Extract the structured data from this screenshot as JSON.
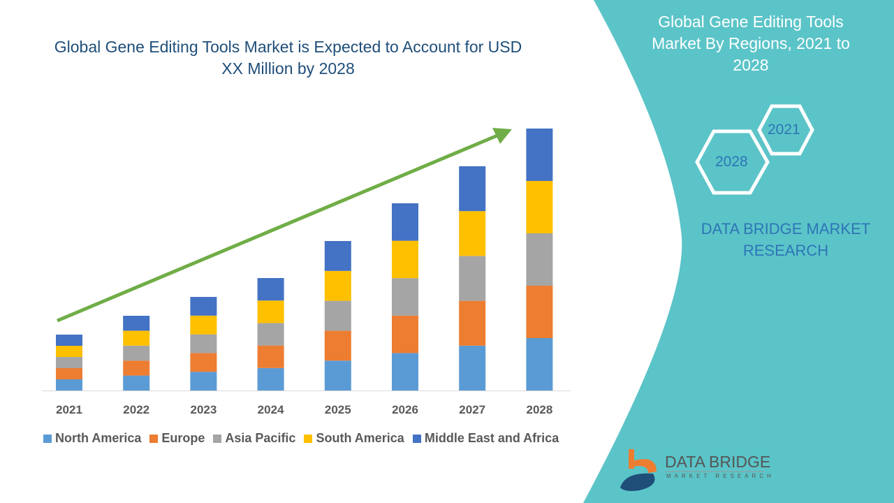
{
  "title": "Global Gene Editing Tools Market is Expected to Account for USD XX Million by 2028",
  "side_panel": {
    "title": "Global Gene Editing Tools Market By Regions, 2021 to 2028",
    "hex_labels": [
      "2021",
      "2028"
    ],
    "brand": "DATA BRIDGE MARKET RESEARCH",
    "logo_text": "DATA BRIDGE",
    "logo_subtext": "MARKET RESEARCH",
    "panel_color": "#5bc4c8"
  },
  "chart_data": {
    "type": "bar",
    "stacked": true,
    "title": "Global Gene Editing Tools Market is Expected to Account for USD XX Million by 2028",
    "categories": [
      "2021",
      "2022",
      "2023",
      "2024",
      "2025",
      "2026",
      "2027",
      "2028"
    ],
    "y_axis_shown": false,
    "ylim": [
      0,
      390
    ],
    "grid": false,
    "legend_position": "bottom",
    "trend_arrow": true,
    "series": [
      {
        "name": "North America",
        "color": "#5b9bd5",
        "values": [
          16,
          21.4,
          26.8,
          32.2,
          42.8,
          53.6,
          64.2,
          75
        ]
      },
      {
        "name": "Europe",
        "color": "#ed7d31",
        "values": [
          16,
          21.4,
          26.8,
          32.2,
          42.8,
          53.6,
          64.2,
          75
        ]
      },
      {
        "name": "Asia Pacific",
        "color": "#a5a5a5",
        "values": [
          16,
          21.4,
          26.8,
          32.2,
          42.8,
          53.6,
          64.2,
          75
        ]
      },
      {
        "name": "South America",
        "color": "#ffc000",
        "values": [
          16,
          21.4,
          26.8,
          32.2,
          42.8,
          53.6,
          64.2,
          75
        ]
      },
      {
        "name": "Middle East and Africa",
        "color": "#4472c4",
        "values": [
          16,
          21.4,
          26.8,
          32.2,
          42.8,
          53.6,
          64.2,
          75
        ]
      }
    ]
  }
}
